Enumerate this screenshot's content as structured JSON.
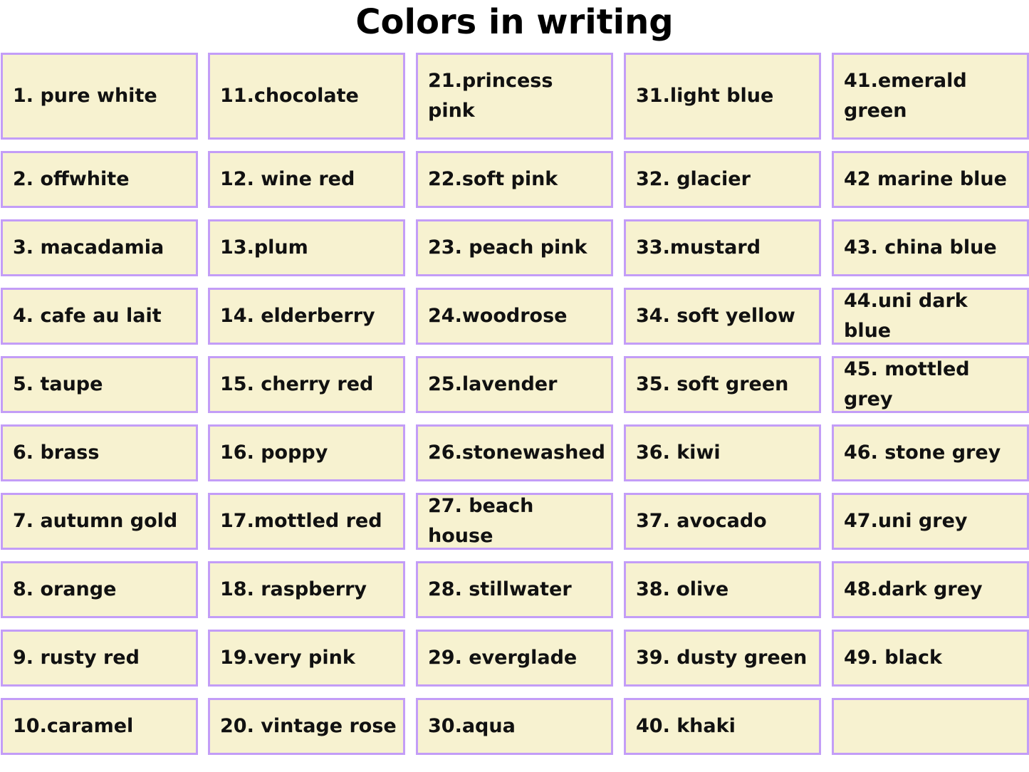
{
  "title": "Colors in writing",
  "columns": [
    [
      "1. pure white",
      "2. offwhite",
      "3. macadamia",
      "4. cafe au lait",
      "5. taupe",
      "6. brass",
      "7. autumn gold",
      "8. orange",
      "9. rusty red",
      "10.caramel"
    ],
    [
      "11.chocolate",
      "12. wine red",
      "13.plum",
      "14. elderberry",
      "15. cherry red",
      "16. poppy",
      "17.mottled red",
      "18. raspberry",
      "19.very pink",
      "20. vintage rose"
    ],
    [
      "21.princess pink",
      "22.soft pink",
      "23. peach pink",
      "24.woodrose",
      "25.lavender",
      "26.stonewashed",
      "27. beach house",
      "28. stillwater",
      "29. everglade",
      "30.aqua"
    ],
    [
      "31.light blue",
      "32. glacier",
      "33.mustard",
      "34. soft yellow",
      "35. soft green",
      "36. kiwi",
      "37. avocado",
      "38. olive",
      "39. dusty green",
      "40. khaki"
    ],
    [
      "41.emerald green",
      "42 marine blue",
      "43. china blue",
      "44.uni dark blue",
      "45. mottled grey",
      "46. stone grey",
      "47.uni grey",
      "48.dark grey",
      "49. black",
      ""
    ]
  ],
  "colors": {
    "cell_fill": "#f7f2d0",
    "cell_border": "#c39df7"
  }
}
